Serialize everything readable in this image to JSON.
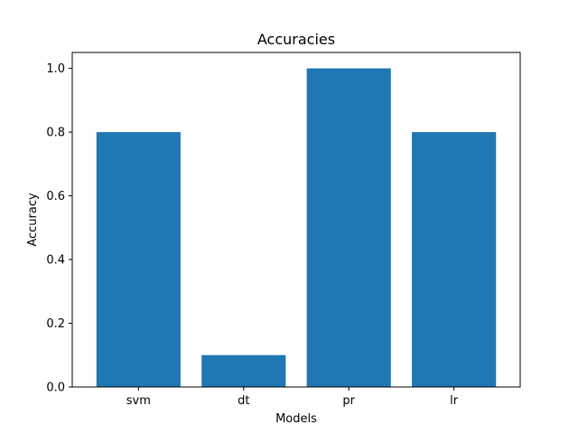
{
  "chart_data": {
    "type": "bar",
    "title": "Accuracies",
    "xlabel": "Models",
    "ylabel": "Accuracy",
    "categories": [
      "svm",
      "dt",
      "pr",
      "lr"
    ],
    "values": [
      0.8,
      0.1,
      1.0,
      0.8
    ],
    "ylim": [
      0,
      1.05
    ],
    "yticks": [
      "0.0",
      "0.2",
      "0.4",
      "0.6",
      "0.8",
      "1.0"
    ],
    "grid": false,
    "bar_color": "#1f77b4"
  }
}
